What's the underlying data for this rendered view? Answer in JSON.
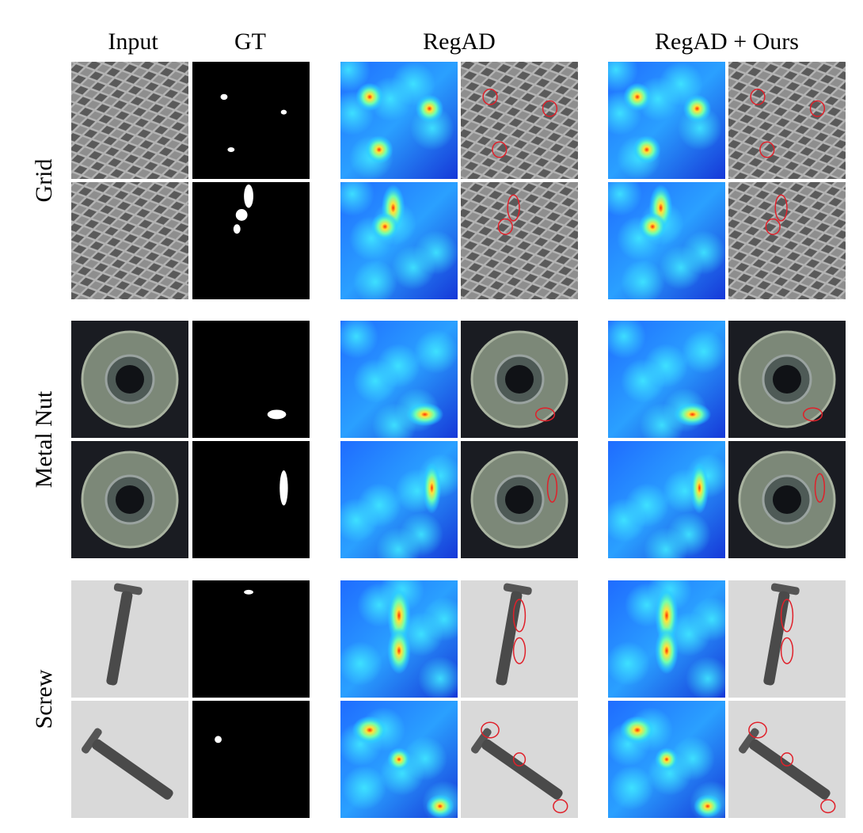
{
  "columns": [
    "Input",
    "GT",
    "RegAD",
    "RegAD + Ours"
  ],
  "rows": [
    "Grid",
    "Metal Nut",
    "Screw"
  ]
}
